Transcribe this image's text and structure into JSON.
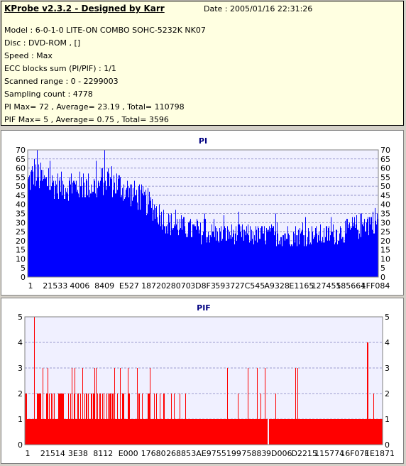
{
  "info": {
    "title": "KProbe v2.3.2 - Designed by Karr",
    "date": "Date : 2005/01/16 22:31:26",
    "lines": [
      "Model : 6-0-1-0 LITE-ON COMBO SOHC-5232K NK07",
      "Disc : DVD-ROM ,  []",
      "Speed : Max",
      "ECC blocks sum (PI/PIF) : 1/1",
      "Scanned range : 0 - 2299003",
      "Sampling count : 4778",
      "PI Max= 72 , Average= 23.19 , Total= 110798",
      "PIF Max= 5 , Average= 0.75 , Total= 3596"
    ]
  },
  "chart_data": [
    {
      "type": "bar",
      "title": "PI",
      "color": "#0000ff",
      "ylim": [
        0,
        70
      ],
      "yticks": [
        0,
        5,
        10,
        15,
        20,
        25,
        30,
        35,
        40,
        45,
        50,
        55,
        60,
        65,
        70
      ],
      "xticks": [
        "1",
        "21533",
        "4006",
        "8409",
        "E527",
        "18720",
        "28070",
        "3D8F3",
        "59372",
        "7C545",
        "A9328",
        "E1165",
        "127455",
        "185664",
        "1FF084"
      ],
      "grid": true,
      "profile": [
        {
          "x": 0.0,
          "base": 52,
          "spread": 8
        },
        {
          "x": 0.02,
          "base": 58,
          "spread": 10
        },
        {
          "x": 0.05,
          "base": 52,
          "spread": 8
        },
        {
          "x": 0.1,
          "base": 50,
          "spread": 8
        },
        {
          "x": 0.2,
          "base": 50,
          "spread": 8
        },
        {
          "x": 0.22,
          "base": 55,
          "spread": 10
        },
        {
          "x": 0.3,
          "base": 46,
          "spread": 8
        },
        {
          "x": 0.35,
          "base": 40,
          "spread": 8
        },
        {
          "x": 0.4,
          "base": 30,
          "spread": 7
        },
        {
          "x": 0.5,
          "base": 24,
          "spread": 6
        },
        {
          "x": 0.7,
          "base": 23,
          "spread": 6
        },
        {
          "x": 0.85,
          "base": 23,
          "spread": 6
        },
        {
          "x": 0.92,
          "base": 26,
          "spread": 7
        },
        {
          "x": 1.0,
          "base": 32,
          "spread": 8
        }
      ],
      "max": 72
    },
    {
      "type": "bar",
      "title": "PIF",
      "color": "#ff0000",
      "ylim": [
        0,
        5
      ],
      "yticks": [
        0,
        1,
        2,
        3,
        4,
        5
      ],
      "xticks": [
        "1",
        "21514",
        "3E38",
        "8112",
        "E000",
        "17680",
        "26885",
        "3AE97",
        "55199",
        "75883",
        "9D006",
        "D2215",
        "115774",
        "16F07F",
        "1E1871"
      ],
      "grid": true,
      "max": 5
    }
  ]
}
